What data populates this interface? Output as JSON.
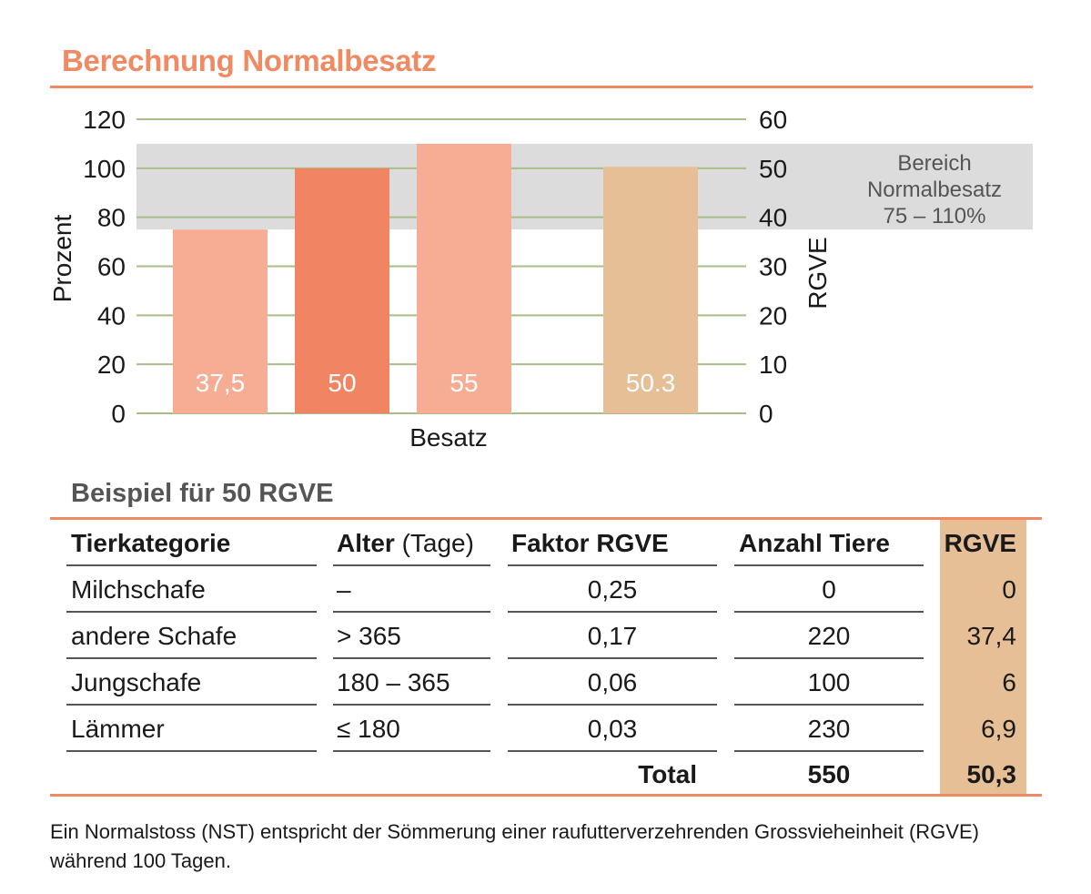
{
  "title": "Berechnung Normalbesatz",
  "chart_data": {
    "type": "bar",
    "xlabel": "Besatz",
    "ylabel_left": "Prozent",
    "ylabel_right": "RGVE",
    "ylim_left": [
      0,
      120
    ],
    "ylim_right": [
      0,
      60
    ],
    "yticks_left": [
      "0",
      "20",
      "40",
      "60",
      "80",
      "100",
      "120"
    ],
    "yticks_right": [
      "0",
      "10",
      "20",
      "30",
      "40",
      "50",
      "60"
    ],
    "bars": [
      {
        "value_rgve": 37.5,
        "label": "37,5",
        "color": "#f6ad94"
      },
      {
        "value_rgve": 50,
        "label": "50",
        "color": "#f18463"
      },
      {
        "value_rgve": 55,
        "label": "55",
        "color": "#f6ad94"
      },
      {
        "value_rgve": 50.3,
        "label": "50.3",
        "color": "#e6bf96"
      }
    ],
    "band": {
      "from_percent": 75,
      "to_percent": 110,
      "label_lines": [
        "Bereich",
        "Normalbesatz",
        "75 – 110%"
      ],
      "color": "#dcdcdc"
    },
    "grid": true,
    "grid_color": "#a9bd8a"
  },
  "table": {
    "subtitle": "Beispiel für 50 RGVE",
    "headers": {
      "kategorie": "Tierkategorie",
      "alter_bold": "Alter",
      "alter_rest": " (Tage)",
      "faktor": "Faktor RGVE",
      "anzahl": "Anzahl Tiere",
      "rgve": "RGVE"
    },
    "rows": [
      {
        "kategorie": "Milchschafe",
        "alter": "–",
        "faktor": "0,25",
        "anzahl": "0",
        "rgve": "0"
      },
      {
        "kategorie": "andere Schafe",
        "alter": "> 365",
        "faktor": "0,17",
        "anzahl": "220",
        "rgve": "37,4"
      },
      {
        "kategorie": "Jungschafe",
        "alter": "180 – 365",
        "faktor": "0,06",
        "anzahl": "100",
        "rgve": "6"
      },
      {
        "kategorie": "Lämmer",
        "alter": "≤ 180",
        "faktor": "0,03",
        "anzahl": "230",
        "rgve": "6,9"
      }
    ],
    "total": {
      "label": "Total",
      "anzahl": "550",
      "rgve": "50,3"
    }
  },
  "footnote": "Ein Normalstoss (NST) entspricht der Sömmerung einer raufutterverzehrenden Grossvieheinheit (RGVE) während 100 Tagen."
}
